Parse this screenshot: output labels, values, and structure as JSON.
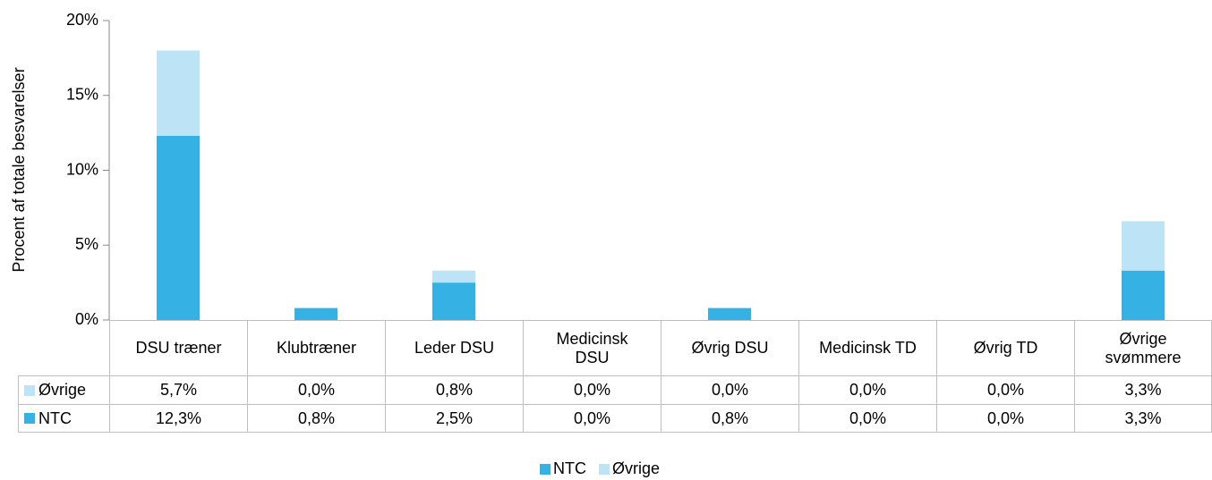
{
  "chart_data": {
    "type": "stacked_bar",
    "y_label": "Procent af totale besvarelser",
    "categories": [
      "DSU træner",
      "Klubtræner",
      "Leder DSU",
      "Medicinsk DSU",
      "Øvrig DSU",
      "Medicinsk TD",
      "Øvrig TD",
      "Øvrige svømmere"
    ],
    "series": [
      {
        "name": "NTC",
        "color": "#35b1e4",
        "values": [
          12.3,
          0.8,
          2.5,
          0,
          0.8,
          0,
          0,
          3.3
        ],
        "value_labels": [
          "12,3%",
          "0,8%",
          "2,5%",
          "0,0%",
          "0,8%",
          "0,0%",
          "0,0%",
          "3,3%"
        ]
      },
      {
        "name": "Øvrige",
        "color": "#bde4f6",
        "values": [
          5.7,
          0,
          0.8,
          0,
          0,
          0,
          0,
          3.3
        ],
        "value_labels": [
          "5,7%",
          "0,0%",
          "0,8%",
          "0,0%",
          "0,0%",
          "0,0%",
          "0,0%",
          "3,3%"
        ]
      }
    ],
    "ylim": [
      0,
      20
    ],
    "yticks": [
      {
        "value": 0,
        "label": "0%"
      },
      {
        "value": 5,
        "label": "5%"
      },
      {
        "value": 10,
        "label": "10%"
      },
      {
        "value": 15,
        "label": "15%"
      },
      {
        "value": 20,
        "label": "20%"
      }
    ],
    "grid": false,
    "legend": "bottom"
  }
}
